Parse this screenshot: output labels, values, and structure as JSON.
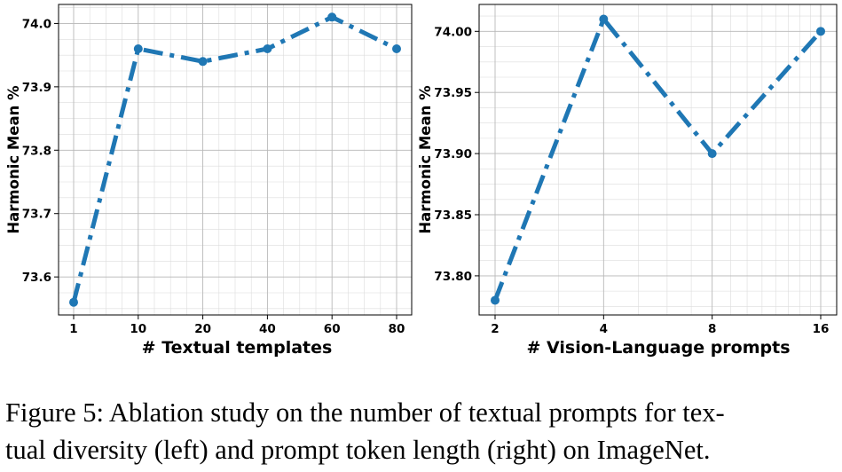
{
  "chart_data": [
    {
      "type": "line",
      "title": "",
      "xlabel": "# Textual templates",
      "ylabel": "Harmonic Mean %",
      "categories": [
        "1",
        "10",
        "20",
        "40",
        "60",
        "80"
      ],
      "x_scale": "categorical",
      "series": [
        {
          "name": "Harmonic Mean",
          "values": [
            73.56,
            73.96,
            73.94,
            73.96,
            74.01,
            73.96
          ],
          "color": "#1f77b4",
          "linestyle": "dashdot",
          "marker": "circle"
        }
      ],
      "ylim": [
        73.54,
        74.03
      ],
      "yticks": [
        73.6,
        73.7,
        73.8,
        73.9,
        74.0
      ],
      "ytick_labels": [
        "73.6",
        "73.7",
        "73.8",
        "73.9",
        "74.0"
      ],
      "ytick_minor_step": 0.025,
      "grid": true
    },
    {
      "type": "line",
      "title": "",
      "xlabel": "# Vision-Language prompts",
      "ylabel": "Harmonic Mean %",
      "categories": [
        "2",
        "4",
        "8",
        "16"
      ],
      "x_scale": "log2",
      "x_values": [
        2,
        4,
        8,
        16
      ],
      "series": [
        {
          "name": "Harmonic Mean",
          "values": [
            73.78,
            74.01,
            73.9,
            74.0
          ],
          "color": "#1f77b4",
          "linestyle": "dashdot",
          "marker": "circle"
        }
      ],
      "ylim": [
        73.768,
        74.022
      ],
      "yticks": [
        73.8,
        73.85,
        73.9,
        73.95,
        74.0
      ],
      "ytick_labels": [
        "73.80",
        "73.85",
        "73.90",
        "73.95",
        "74.00"
      ],
      "ytick_minor_step": 0.0125,
      "grid": true
    }
  ],
  "caption": {
    "line1": "Figure 5: Ablation study on the number of textual prompts for tex-",
    "line2": "tual diversity (left) and prompt token length (right) on ImageNet."
  }
}
